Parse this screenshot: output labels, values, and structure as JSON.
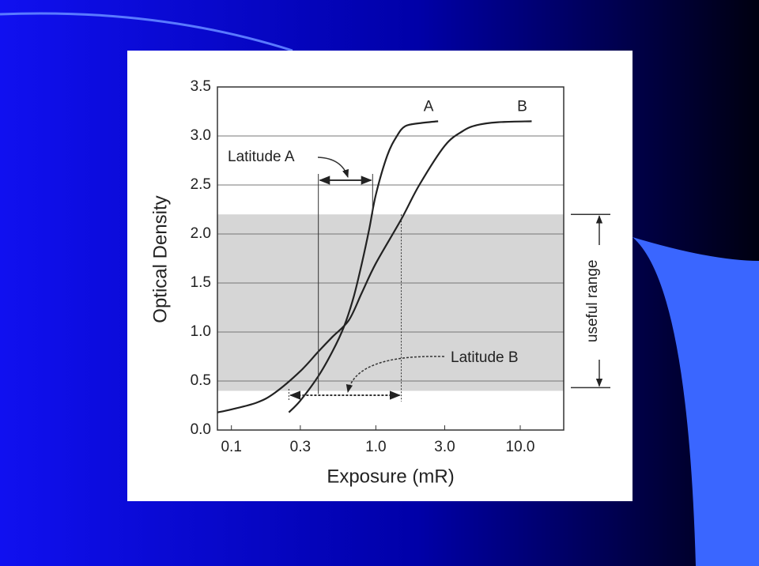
{
  "chart_data": {
    "type": "line",
    "x_label": "Exposure (mR)",
    "y_label": "Optical Density",
    "xscale": "log",
    "xlim": [
      0.08,
      20
    ],
    "xticks": [
      0.1,
      0.3,
      {
        "value": 1,
        "label": "1.0"
      },
      {
        "value": 3,
        "label": "3.0"
      },
      {
        "value": 10,
        "label": "10.0"
      }
    ],
    "ylim": [
      0,
      3.5
    ],
    "yticks": [
      {
        "value": 0,
        "label": "0.0"
      },
      0.5,
      {
        "value": 1,
        "label": "1.0"
      },
      1.5,
      {
        "value": 2,
        "label": "2.0"
      },
      2.5,
      {
        "value": 3,
        "label": "3.0"
      },
      3.5
    ],
    "grid": "y",
    "series": [
      {
        "name": "A",
        "color": "#222222",
        "x": [
          0.25,
          0.3,
          0.4,
          0.5,
          0.6,
          0.7,
          0.8,
          0.9,
          1.0,
          1.2,
          1.4,
          1.6,
          2.0,
          2.7
        ],
        "values": [
          0.18,
          0.3,
          0.55,
          0.8,
          1.05,
          1.35,
          1.7,
          2.05,
          2.4,
          2.8,
          3.0,
          3.1,
          3.13,
          3.15
        ]
      },
      {
        "name": "B",
        "color": "#222222",
        "x": [
          0.08,
          0.1,
          0.15,
          0.2,
          0.3,
          0.4,
          0.5,
          0.65,
          0.8,
          1.0,
          1.5,
          2.0,
          3.0,
          4.0,
          5.0,
          7.0,
          12.0
        ],
        "values": [
          0.18,
          0.21,
          0.28,
          0.38,
          0.6,
          0.8,
          0.95,
          1.12,
          1.4,
          1.7,
          2.15,
          2.5,
          2.9,
          3.05,
          3.11,
          3.14,
          3.15
        ]
      }
    ],
    "useful_range": {
      "label": "useful range",
      "range": [
        0.4,
        2.2
      ]
    },
    "latitude_a": {
      "label": "Latitude A",
      "range": [
        0.4,
        0.95
      ]
    },
    "latitude_b": {
      "label": "Latitude B",
      "range": [
        0.25,
        1.5
      ]
    }
  }
}
